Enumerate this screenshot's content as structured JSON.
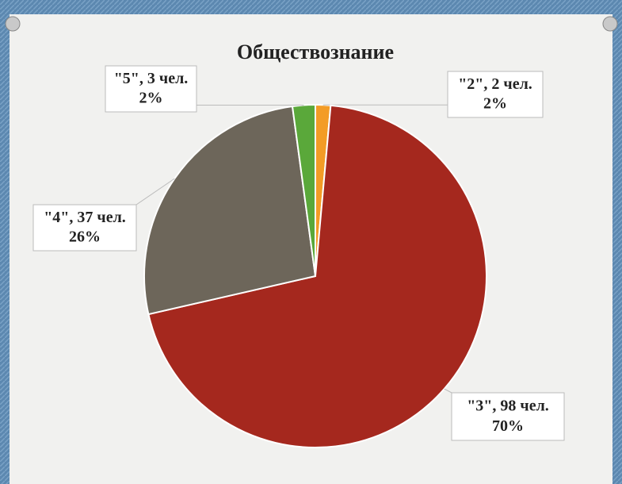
{
  "chart_data": {
    "type": "pie",
    "title": "Обществознание",
    "labels": [
      "\"2\", 2 чел.",
      "\"3\", 98 чел.",
      "\"4\", 37 чел.",
      "\"5\", 3 чел."
    ],
    "values": [
      2,
      98,
      37,
      3
    ],
    "percents": [
      2,
      70,
      26,
      2
    ],
    "percent_labels": [
      "2%",
      "70%",
      "26%",
      "2%"
    ],
    "colors": [
      "#f39c26",
      "#a5281e",
      "#6d665a",
      "#5aa83a"
    ]
  }
}
